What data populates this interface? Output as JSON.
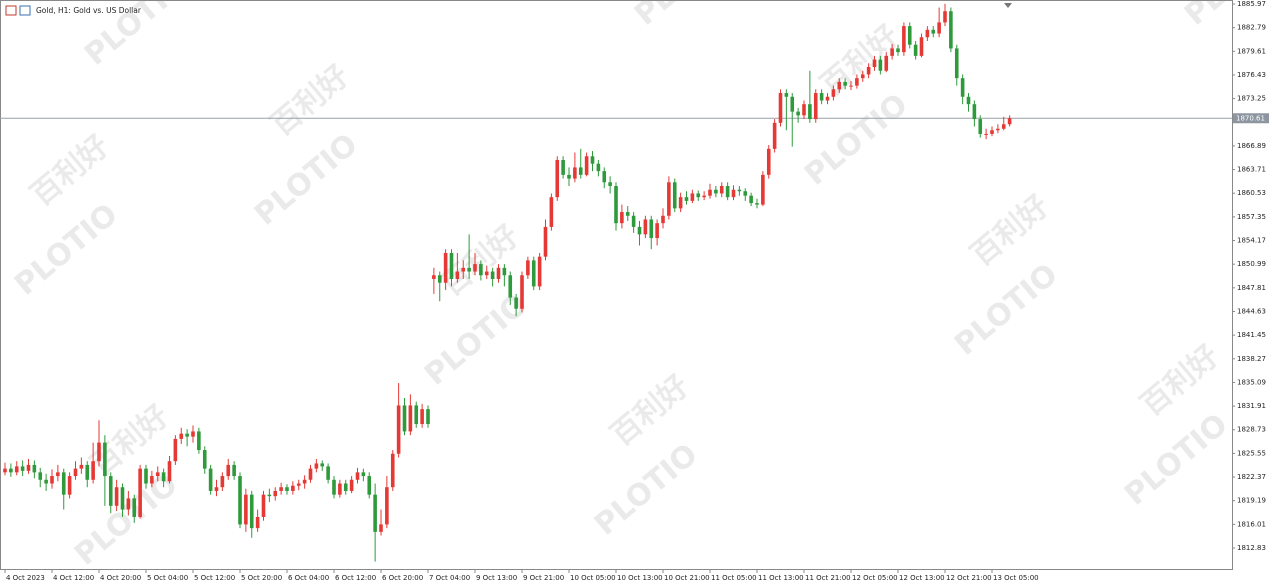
{
  "chart_data": {
    "type": "candlestick",
    "title": "Gold, H1: Gold vs. US Dollar",
    "up_color": "#e53935",
    "down_color": "#2e9a3c",
    "current_price": 1870.61,
    "watermarks": [
      "PLOTIO",
      "百利好"
    ],
    "ylim": [
      1809.87,
      1886.51
    ],
    "yticks": [
      1885.97,
      1882.79,
      1879.61,
      1876.43,
      1873.25,
      1866.89,
      1863.71,
      1860.53,
      1857.35,
      1854.17,
      1850.99,
      1847.81,
      1844.63,
      1841.45,
      1838.27,
      1835.09,
      1831.91,
      1828.73,
      1825.55,
      1822.37,
      1819.19,
      1816.01,
      1812.83
    ],
    "xlim": [
      -0.85,
      208.85
    ],
    "xticks": [
      {
        "value": 0,
        "label": "4 Oct 2023"
      },
      {
        "value": 8,
        "label": "4 Oct 12:00"
      },
      {
        "value": 16,
        "label": "4 Oct 20:00"
      },
      {
        "value": 24,
        "label": "5 Oct 04:00"
      },
      {
        "value": 32,
        "label": "5 Oct 12:00"
      },
      {
        "value": 40,
        "label": "5 Oct 20:00"
      },
      {
        "value": 48,
        "label": "6 Oct 04:00"
      },
      {
        "value": 56,
        "label": "6 Oct 12:00"
      },
      {
        "value": 64,
        "label": "6 Oct 20:00"
      },
      {
        "value": 72,
        "label": "7 Oct 04:00"
      },
      {
        "value": 80,
        "label": "9 Oct 13:00"
      },
      {
        "value": 88,
        "label": "9 Oct 21:00"
      },
      {
        "value": 96,
        "label": "10 Oct 05:00"
      },
      {
        "value": 104,
        "label": "10 Oct 13:00"
      },
      {
        "value": 112,
        "label": "10 Oct 21:00"
      },
      {
        "value": 120,
        "label": "11 Oct 05:00"
      },
      {
        "value": 128,
        "label": "11 Oct 13:00"
      },
      {
        "value": 136,
        "label": "11 Oct 21:00"
      },
      {
        "value": 144,
        "label": "12 Oct 05:00"
      },
      {
        "value": 152,
        "label": "12 Oct 13:00"
      },
      {
        "value": 160,
        "label": "12 Oct 21:00"
      },
      {
        "value": 168,
        "label": "13 Oct 05:00"
      }
    ],
    "candles": [
      [
        1823.0,
        1824.3,
        1822.6,
        1823.5
      ],
      [
        1823.5,
        1824.2,
        1822.4,
        1823.0
      ],
      [
        1823.0,
        1824.5,
        1822.6,
        1823.8
      ],
      [
        1823.8,
        1824.6,
        1822.5,
        1823.2
      ],
      [
        1823.2,
        1824.8,
        1822.8,
        1824.0
      ],
      [
        1824.0,
        1824.6,
        1822.2,
        1823.0
      ],
      [
        1823.0,
        1823.6,
        1821.0,
        1822.0
      ],
      [
        1822.0,
        1822.8,
        1820.5,
        1821.5
      ],
      [
        1821.5,
        1823.4,
        1820.8,
        1822.5
      ],
      [
        1822.5,
        1824.0,
        1821.8,
        1823.0
      ],
      [
        1823.0,
        1823.5,
        1818.0,
        1820.0
      ],
      [
        1820.0,
        1823.0,
        1819.5,
        1822.5
      ],
      [
        1822.5,
        1824.5,
        1822.0,
        1823.5
      ],
      [
        1823.5,
        1825.0,
        1822.8,
        1824.0
      ],
      [
        1824.0,
        1824.5,
        1821.0,
        1822.0
      ],
      [
        1822.0,
        1827.0,
        1821.5,
        1824.5
      ],
      [
        1824.5,
        1830.0,
        1823.8,
        1827.0
      ],
      [
        1827.0,
        1828.0,
        1818.5,
        1822.5
      ],
      [
        1822.5,
        1823.0,
        1817.5,
        1818.5
      ],
      [
        1818.5,
        1822.0,
        1817.8,
        1821.0
      ],
      [
        1821.0,
        1821.5,
        1817.0,
        1818.0
      ],
      [
        1818.0,
        1820.5,
        1817.2,
        1819.5
      ],
      [
        1819.5,
        1820.0,
        1816.2,
        1817.0
      ],
      [
        1817.0,
        1824.0,
        1816.8,
        1823.5
      ],
      [
        1823.5,
        1824.0,
        1820.8,
        1821.5
      ],
      [
        1821.5,
        1823.2,
        1821.0,
        1822.5
      ],
      [
        1822.5,
        1823.8,
        1821.8,
        1823.0
      ],
      [
        1823.0,
        1823.5,
        1821.0,
        1821.8
      ],
      [
        1821.8,
        1825.2,
        1821.5,
        1824.5
      ],
      [
        1824.5,
        1828.0,
        1824.0,
        1827.5
      ],
      [
        1827.5,
        1829.0,
        1826.8,
        1828.2
      ],
      [
        1828.2,
        1828.8,
        1826.5,
        1827.8
      ],
      [
        1827.8,
        1829.3,
        1827.0,
        1828.5
      ],
      [
        1828.5,
        1829.0,
        1825.5,
        1826.0
      ],
      [
        1826.0,
        1826.5,
        1822.8,
        1823.5
      ],
      [
        1823.5,
        1824.0,
        1820.0,
        1820.5
      ],
      [
        1820.5,
        1822.0,
        1819.8,
        1821.0
      ],
      [
        1821.0,
        1823.0,
        1820.5,
        1822.5
      ],
      [
        1822.5,
        1824.8,
        1822.0,
        1824.0
      ],
      [
        1824.0,
        1824.5,
        1822.0,
        1822.5
      ],
      [
        1822.5,
        1823.0,
        1815.5,
        1816.0
      ],
      [
        1816.0,
        1820.8,
        1815.0,
        1820.0
      ],
      [
        1820.0,
        1820.5,
        1814.2,
        1815.5
      ],
      [
        1815.5,
        1818.0,
        1815.0,
        1817.0
      ],
      [
        1817.0,
        1820.5,
        1816.5,
        1820.0
      ],
      [
        1820.0,
        1820.8,
        1819.0,
        1819.8
      ],
      [
        1819.8,
        1821.0,
        1819.2,
        1820.5
      ],
      [
        1820.5,
        1821.6,
        1820.0,
        1821.0
      ],
      [
        1821.0,
        1821.4,
        1820.0,
        1820.5
      ],
      [
        1820.5,
        1821.8,
        1820.0,
        1821.2
      ],
      [
        1821.2,
        1822.0,
        1820.6,
        1821.5
      ],
      [
        1821.5,
        1822.6,
        1820.8,
        1822.0
      ],
      [
        1822.0,
        1824.0,
        1821.6,
        1823.5
      ],
      [
        1823.5,
        1824.8,
        1823.0,
        1824.2
      ],
      [
        1824.2,
        1824.6,
        1823.2,
        1823.8
      ],
      [
        1823.8,
        1824.2,
        1821.5,
        1822.0
      ],
      [
        1822.0,
        1822.5,
        1819.5,
        1820.0
      ],
      [
        1820.0,
        1822.0,
        1819.6,
        1821.5
      ],
      [
        1821.5,
        1822.0,
        1820.0,
        1820.5
      ],
      [
        1820.5,
        1822.5,
        1820.2,
        1822.0
      ],
      [
        1822.0,
        1823.6,
        1821.5,
        1823.0
      ],
      [
        1823.0,
        1823.5,
        1821.8,
        1822.5
      ],
      [
        1822.5,
        1823.0,
        1819.5,
        1820.0
      ],
      [
        1820.0,
        1821.5,
        1811.0,
        1815.0
      ],
      [
        1815.0,
        1818.0,
        1814.5,
        1816.0
      ],
      [
        1816.0,
        1822.5,
        1815.5,
        1821.0
      ],
      [
        1821.0,
        1826.0,
        1820.5,
        1825.5
      ],
      [
        1825.5,
        1835.0,
        1825.0,
        1832.0
      ],
      [
        1832.0,
        1833.0,
        1828.0,
        1828.5
      ],
      [
        1828.5,
        1833.5,
        1828.0,
        1832.0
      ],
      [
        1832.0,
        1832.5,
        1829.0,
        1829.5
      ],
      [
        1829.5,
        1832.2,
        1829.0,
        1831.5
      ],
      [
        1831.5,
        1832.0,
        1829.0,
        1829.5
      ],
      [
        1849.0,
        1850.5,
        1847.0,
        1849.5
      ],
      [
        1849.5,
        1850.0,
        1846.0,
        1848.5
      ],
      [
        1848.5,
        1853.0,
        1847.5,
        1852.5
      ],
      [
        1852.5,
        1853.0,
        1848.0,
        1849.0
      ],
      [
        1849.0,
        1852.5,
        1848.5,
        1850.0
      ],
      [
        1850.0,
        1851.5,
        1849.0,
        1850.5
      ],
      [
        1850.5,
        1855.0,
        1849.0,
        1850.0
      ],
      [
        1850.0,
        1852.5,
        1849.5,
        1851.0
      ],
      [
        1851.0,
        1851.5,
        1848.8,
        1849.5
      ],
      [
        1849.5,
        1850.8,
        1849.0,
        1850.0
      ],
      [
        1850.0,
        1850.5,
        1848.0,
        1849.0
      ],
      [
        1849.0,
        1851.0,
        1848.5,
        1850.5
      ],
      [
        1850.5,
        1851.0,
        1848.0,
        1849.5
      ],
      [
        1849.5,
        1850.0,
        1845.5,
        1846.5
      ],
      [
        1846.5,
        1847.0,
        1844.0,
        1845.0
      ],
      [
        1845.0,
        1850.0,
        1844.5,
        1849.5
      ],
      [
        1849.5,
        1852.0,
        1849.0,
        1851.5
      ],
      [
        1851.5,
        1852.0,
        1847.5,
        1848.0
      ],
      [
        1848.0,
        1852.5,
        1847.5,
        1852.0
      ],
      [
        1852.0,
        1857.0,
        1851.5,
        1856.0
      ],
      [
        1856.0,
        1860.5,
        1855.5,
        1860.0
      ],
      [
        1860.0,
        1865.5,
        1859.5,
        1865.0
      ],
      [
        1865.0,
        1865.5,
        1862.5,
        1863.0
      ],
      [
        1863.0,
        1864.0,
        1861.5,
        1862.5
      ],
      [
        1862.5,
        1866.0,
        1862.0,
        1864.0
      ],
      [
        1864.0,
        1866.5,
        1862.5,
        1863.0
      ],
      [
        1863.0,
        1866.0,
        1862.8,
        1865.5
      ],
      [
        1865.5,
        1866.2,
        1863.5,
        1864.5
      ],
      [
        1864.5,
        1865.0,
        1862.8,
        1863.5
      ],
      [
        1863.5,
        1864.0,
        1861.2,
        1862.0
      ],
      [
        1862.0,
        1862.8,
        1860.5,
        1861.5
      ],
      [
        1861.5,
        1862.0,
        1855.5,
        1856.5
      ],
      [
        1856.5,
        1859.0,
        1855.8,
        1858.0
      ],
      [
        1858.0,
        1858.8,
        1856.8,
        1857.5
      ],
      [
        1857.5,
        1858.0,
        1855.2,
        1856.0
      ],
      [
        1856.0,
        1856.8,
        1853.5,
        1855.0
      ],
      [
        1855.0,
        1857.5,
        1854.5,
        1857.0
      ],
      [
        1857.0,
        1857.5,
        1853.0,
        1854.5
      ],
      [
        1854.5,
        1857.0,
        1853.5,
        1856.5
      ],
      [
        1856.5,
        1858.5,
        1855.8,
        1857.5
      ],
      [
        1857.5,
        1862.8,
        1857.0,
        1862.0
      ],
      [
        1862.0,
        1862.5,
        1858.0,
        1858.5
      ],
      [
        1858.5,
        1860.6,
        1858.0,
        1860.0
      ],
      [
        1860.0,
        1860.8,
        1859.0,
        1859.5
      ],
      [
        1859.5,
        1861.0,
        1859.2,
        1860.5
      ],
      [
        1860.5,
        1860.9,
        1859.5,
        1860.0
      ],
      [
        1860.0,
        1860.8,
        1859.6,
        1860.2
      ],
      [
        1860.2,
        1861.8,
        1859.8,
        1861.0
      ],
      [
        1861.0,
        1861.5,
        1860.0,
        1860.5
      ],
      [
        1860.5,
        1862.0,
        1860.0,
        1861.5
      ],
      [
        1861.5,
        1862.0,
        1859.6,
        1860.0
      ],
      [
        1860.0,
        1861.6,
        1859.6,
        1861.0
      ],
      [
        1861.0,
        1861.5,
        1860.2,
        1860.8
      ],
      [
        1860.8,
        1861.2,
        1859.5,
        1860.2
      ],
      [
        1860.2,
        1860.6,
        1858.8,
        1859.2
      ],
      [
        1859.2,
        1859.8,
        1858.5,
        1859.0
      ],
      [
        1859.0,
        1863.5,
        1858.8,
        1863.0
      ],
      [
        1863.0,
        1867.0,
        1862.5,
        1866.5
      ],
      [
        1866.5,
        1870.5,
        1866.0,
        1870.0
      ],
      [
        1870.0,
        1874.5,
        1869.5,
        1874.0
      ],
      [
        1874.0,
        1874.5,
        1869.0,
        1873.5
      ],
      [
        1873.5,
        1874.0,
        1866.8,
        1871.5
      ],
      [
        1871.5,
        1872.0,
        1870.0,
        1871.0
      ],
      [
        1871.0,
        1873.0,
        1870.5,
        1872.5
      ],
      [
        1872.5,
        1877.0,
        1870.0,
        1870.5
      ],
      [
        1870.5,
        1874.5,
        1870.0,
        1874.0
      ],
      [
        1874.0,
        1874.5,
        1872.5,
        1873.0
      ],
      [
        1873.0,
        1874.0,
        1872.5,
        1873.5
      ],
      [
        1873.5,
        1875.0,
        1873.0,
        1874.5
      ],
      [
        1874.5,
        1876.0,
        1874.0,
        1875.5
      ],
      [
        1875.5,
        1876.0,
        1874.5,
        1875.0
      ],
      [
        1875.0,
        1875.6,
        1874.4,
        1875.0
      ],
      [
        1875.0,
        1876.5,
        1874.6,
        1876.0
      ],
      [
        1876.0,
        1877.0,
        1875.5,
        1876.5
      ],
      [
        1876.5,
        1878.0,
        1876.0,
        1877.5
      ],
      [
        1877.5,
        1879.0,
        1877.0,
        1878.5
      ],
      [
        1878.5,
        1879.0,
        1876.5,
        1877.0
      ],
      [
        1877.0,
        1879.5,
        1876.8,
        1879.0
      ],
      [
        1879.0,
        1880.6,
        1878.5,
        1880.0
      ],
      [
        1880.0,
        1880.5,
        1879.0,
        1879.5
      ],
      [
        1879.5,
        1883.5,
        1879.0,
        1883.0
      ],
      [
        1883.0,
        1883.5,
        1880.0,
        1880.5
      ],
      [
        1880.5,
        1881.0,
        1878.5,
        1879.0
      ],
      [
        1879.0,
        1882.0,
        1878.8,
        1881.5
      ],
      [
        1881.5,
        1883.0,
        1881.0,
        1882.5
      ],
      [
        1882.5,
        1883.0,
        1881.5,
        1882.0
      ],
      [
        1882.0,
        1885.5,
        1881.5,
        1883.5
      ],
      [
        1883.5,
        1886.0,
        1883.0,
        1885.0
      ],
      [
        1885.0,
        1885.5,
        1879.5,
        1880.0
      ],
      [
        1880.0,
        1880.5,
        1875.0,
        1876.0
      ],
      [
        1876.0,
        1876.5,
        1872.5,
        1873.5
      ],
      [
        1873.5,
        1874.0,
        1871.5,
        1872.5
      ],
      [
        1872.5,
        1873.0,
        1869.5,
        1870.5
      ],
      [
        1870.5,
        1871.0,
        1868.0,
        1868.5
      ],
      [
        1868.5,
        1869.2,
        1867.8,
        1868.5
      ],
      [
        1868.5,
        1869.5,
        1868.2,
        1869.0
      ],
      [
        1869.0,
        1869.8,
        1868.6,
        1869.2
      ],
      [
        1869.2,
        1870.8,
        1869.0,
        1869.8
      ],
      [
        1869.8,
        1871.0,
        1869.5,
        1870.61
      ]
    ]
  }
}
